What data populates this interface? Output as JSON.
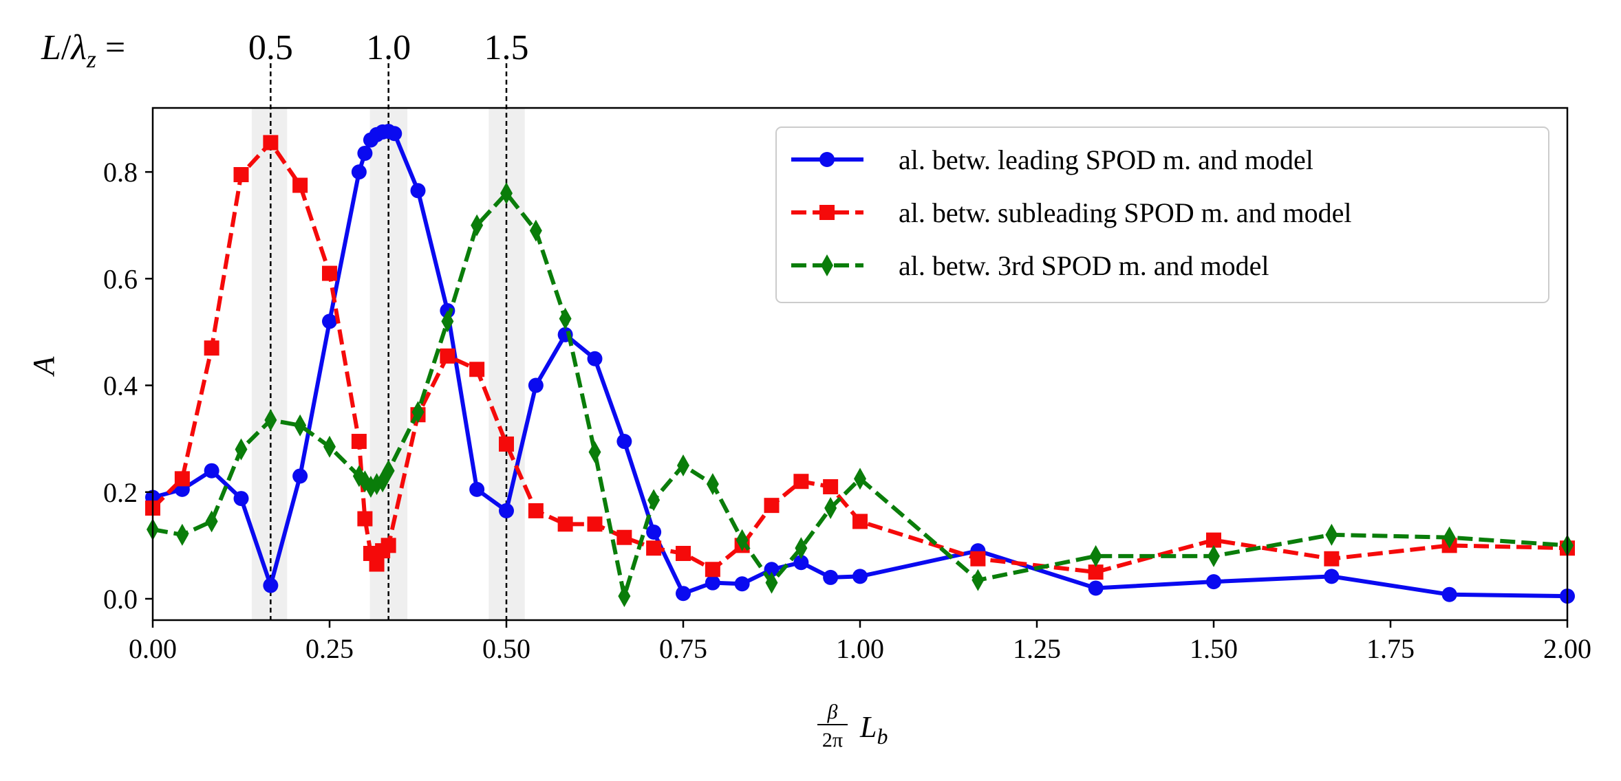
{
  "chart_data": {
    "type": "line",
    "xlabel": {
      "frac_num": "β",
      "frac_den": "2π",
      "var": "L",
      "sub": "b"
    },
    "ylabel": "A",
    "xlim": [
      0.0,
      2.0
    ],
    "ylim": [
      -0.04,
      0.92
    ],
    "xticks": [
      0.0,
      0.25,
      0.5,
      0.75,
      1.0,
      1.25,
      1.5,
      1.75,
      2.0
    ],
    "xtick_labels": [
      "0.00",
      "0.25",
      "0.50",
      "0.75",
      "1.00",
      "1.25",
      "1.50",
      "1.75",
      "2.00"
    ],
    "yticks": [
      0.0,
      0.2,
      0.4,
      0.6,
      0.8
    ],
    "ytick_labels": [
      "0.0",
      "0.2",
      "0.4",
      "0.6",
      "0.8"
    ],
    "top_axis": {
      "prefix": {
        "L": "L",
        "slash": "/",
        "lambda": "λ",
        "sub": "z",
        "eq": " ="
      },
      "markers": [
        {
          "x": 0.16667,
          "label": "0.5"
        },
        {
          "x": 0.33333,
          "label": "1.0"
        },
        {
          "x": 0.5,
          "label": "1.5"
        }
      ]
    },
    "shaded_bands": [
      [
        0.14,
        0.19
      ],
      [
        0.307,
        0.36
      ],
      [
        0.475,
        0.526
      ]
    ],
    "legend_position": "top-right",
    "series": [
      {
        "name": "al. betw. leading SPOD m. and model",
        "color": "#0a0af0",
        "marker": "circle",
        "dash": "solid",
        "x": [
          0.0,
          0.0417,
          0.0833,
          0.125,
          0.1667,
          0.2083,
          0.25,
          0.2917,
          0.3,
          0.3083,
          0.3167,
          0.325,
          0.3333,
          0.3417,
          0.375,
          0.4167,
          0.4583,
          0.5,
          0.5417,
          0.5833,
          0.625,
          0.6667,
          0.7083,
          0.75,
          0.7917,
          0.8333,
          0.875,
          0.9167,
          0.9583,
          1.0,
          1.1667,
          1.3333,
          1.5,
          1.6667,
          1.8333,
          2.0
        ],
        "y": [
          0.19,
          0.205,
          0.24,
          0.188,
          0.025,
          0.23,
          0.52,
          0.8,
          0.835,
          0.86,
          0.87,
          0.875,
          0.876,
          0.872,
          0.765,
          0.54,
          0.205,
          0.165,
          0.4,
          0.495,
          0.45,
          0.295,
          0.125,
          0.01,
          0.03,
          0.028,
          0.055,
          0.068,
          0.04,
          0.042,
          0.09,
          0.02,
          0.032,
          0.042,
          0.008,
          0.005
        ]
      },
      {
        "name": "al. betw. subleading SPOD m. and model",
        "color": "#f50a0a",
        "marker": "square",
        "dash": "dashed",
        "x": [
          0.0,
          0.0417,
          0.0833,
          0.125,
          0.1667,
          0.2083,
          0.25,
          0.2917,
          0.3,
          0.3083,
          0.3167,
          0.325,
          0.3333,
          0.375,
          0.4167,
          0.4583,
          0.5,
          0.5417,
          0.5833,
          0.625,
          0.6667,
          0.7083,
          0.75,
          0.7917,
          0.8333,
          0.875,
          0.9167,
          0.9583,
          1.0,
          1.1667,
          1.3333,
          1.5,
          1.6667,
          1.8333,
          2.0
        ],
        "y": [
          0.17,
          0.225,
          0.47,
          0.795,
          0.855,
          0.775,
          0.61,
          0.295,
          0.15,
          0.085,
          0.065,
          0.09,
          0.1,
          0.345,
          0.455,
          0.43,
          0.29,
          0.165,
          0.14,
          0.14,
          0.115,
          0.095,
          0.085,
          0.055,
          0.1,
          0.175,
          0.22,
          0.21,
          0.145,
          0.075,
          0.05,
          0.11,
          0.075,
          0.1,
          0.095
        ]
      },
      {
        "name": "al. betw. 3rd SPOD m. and model",
        "color": "#0a7d0a",
        "marker": "thin_diamond",
        "dash": "dashed",
        "x": [
          0.0,
          0.0417,
          0.0833,
          0.125,
          0.1667,
          0.2083,
          0.25,
          0.2917,
          0.3,
          0.3083,
          0.3167,
          0.325,
          0.3333,
          0.375,
          0.4167,
          0.4583,
          0.5,
          0.5417,
          0.5833,
          0.625,
          0.6667,
          0.7083,
          0.75,
          0.7917,
          0.8333,
          0.875,
          0.9167,
          0.9583,
          1.0,
          1.1667,
          1.3333,
          1.5,
          1.6667,
          1.8333,
          2.0
        ],
        "y": [
          0.13,
          0.12,
          0.145,
          0.28,
          0.335,
          0.325,
          0.285,
          0.23,
          0.22,
          0.21,
          0.215,
          0.22,
          0.24,
          0.35,
          0.52,
          0.7,
          0.76,
          0.69,
          0.525,
          0.275,
          0.005,
          0.185,
          0.25,
          0.215,
          0.11,
          0.03,
          0.095,
          0.17,
          0.225,
          0.035,
          0.08,
          0.08,
          0.12,
          0.115,
          0.1
        ]
      }
    ]
  }
}
